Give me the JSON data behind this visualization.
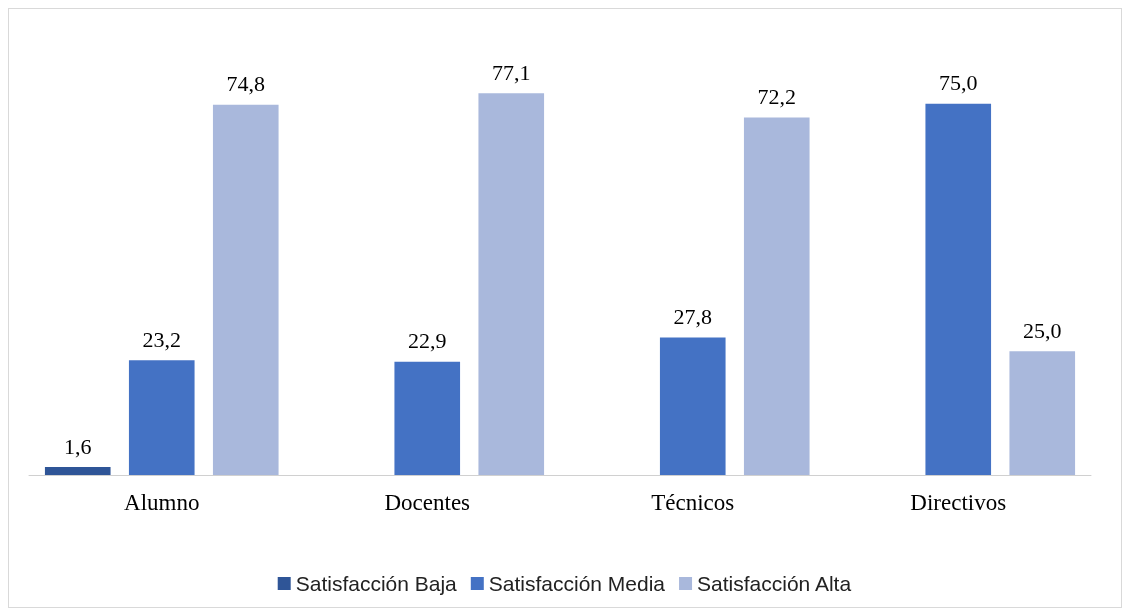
{
  "chart_data": {
    "type": "bar",
    "categories": [
      "Alumno",
      "Docentes",
      "Técnicos",
      "Directivos"
    ],
    "series": [
      {
        "name": "Satisfacción Baja",
        "color": "#2f5597",
        "values": [
          1.6,
          null,
          null,
          null
        ],
        "value_labels": [
          "1,6",
          null,
          null,
          null
        ]
      },
      {
        "name": "Satisfacción Media",
        "color": "#4472c4",
        "values": [
          23.2,
          22.9,
          27.8,
          75.0
        ],
        "value_labels": [
          "23,2",
          "22,9",
          "27,8",
          "75,0"
        ]
      },
      {
        "name": "Satisfacción Alta",
        "color": "#a9b8dc",
        "values": [
          74.8,
          77.1,
          72.2,
          25.0
        ],
        "value_labels": [
          "74,8",
          "77,1",
          "72,2",
          "25,0"
        ]
      }
    ],
    "legend": "bottom",
    "grid": false
  }
}
